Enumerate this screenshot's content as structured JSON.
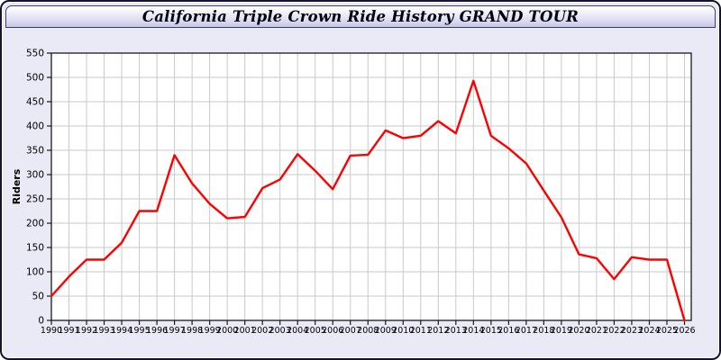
{
  "window": {
    "title": "California Triple Crown Ride History GRAND TOUR"
  },
  "colors": {
    "window_background": "#eaeaf6",
    "titlebar_gradient_top": "#ffffff",
    "titlebar_gradient_bottom": "#c6c6e5",
    "plot_background": "#ffffff",
    "grid_line": "#c9c9c9",
    "axis": "#1a1a1a",
    "series_line": "#ff0000"
  },
  "chart_data": {
    "type": "line",
    "title": "California Triple Crown Ride History GRAND TOUR",
    "xlabel": "",
    "ylabel": "Riders",
    "x": [
      1990,
      1991,
      1992,
      1993,
      1994,
      1995,
      1996,
      1997,
      1998,
      1999,
      2000,
      2001,
      2002,
      2003,
      2004,
      2005,
      2006,
      2007,
      2008,
      2009,
      2010,
      2011,
      2012,
      2013,
      2014,
      2015,
      2016,
      2017,
      2018,
      2019,
      2020,
      2021,
      2022,
      2023,
      2024,
      2025,
      2026
    ],
    "values": [
      50,
      90,
      125,
      125,
      160,
      225,
      225,
      340,
      282,
      240,
      210,
      213,
      272,
      290,
      342,
      308,
      270,
      339,
      341,
      391,
      375,
      380,
      410,
      385,
      493,
      380,
      354,
      323,
      267,
      212,
      136,
      128,
      85,
      130,
      125,
      125,
      0
    ],
    "ylim": [
      0,
      550
    ],
    "ytick_step": 50,
    "grid": true,
    "legend": "none",
    "line_color": "#ff0000"
  }
}
